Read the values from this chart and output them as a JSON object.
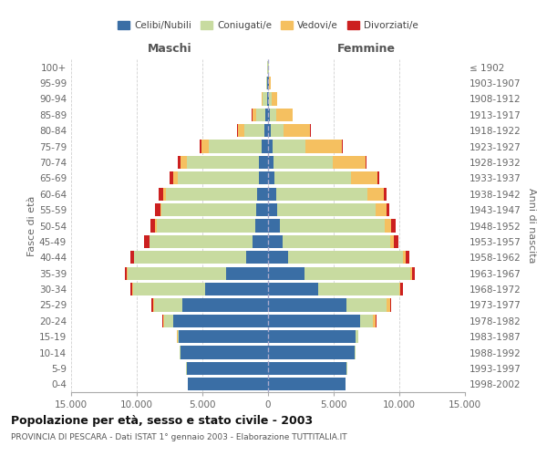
{
  "age_groups": [
    "0-4",
    "5-9",
    "10-14",
    "15-19",
    "20-24",
    "25-29",
    "30-34",
    "35-39",
    "40-44",
    "45-49",
    "50-54",
    "55-59",
    "60-64",
    "65-69",
    "70-74",
    "75-79",
    "80-84",
    "85-89",
    "90-94",
    "95-99",
    "100+"
  ],
  "birth_years": [
    "1998-2002",
    "1993-1997",
    "1988-1992",
    "1983-1987",
    "1978-1982",
    "1973-1977",
    "1968-1972",
    "1963-1967",
    "1958-1962",
    "1953-1957",
    "1948-1952",
    "1943-1947",
    "1938-1942",
    "1933-1937",
    "1928-1932",
    "1923-1927",
    "1918-1922",
    "1913-1917",
    "1908-1912",
    "1903-1907",
    "≤ 1902"
  ],
  "male": {
    "celibi": [
      6100,
      6200,
      6700,
      6800,
      7200,
      6500,
      4800,
      3200,
      1700,
      1200,
      1000,
      900,
      800,
      700,
      700,
      500,
      300,
      200,
      100,
      50,
      30
    ],
    "coniugati": [
      10,
      20,
      50,
      100,
      700,
      2200,
      5500,
      7500,
      8500,
      7800,
      7500,
      7200,
      7000,
      6200,
      5500,
      4000,
      1500,
      700,
      300,
      80,
      20
    ],
    "vedovi": [
      5,
      5,
      5,
      10,
      120,
      80,
      20,
      30,
      40,
      60,
      80,
      100,
      200,
      300,
      500,
      600,
      500,
      300,
      100,
      30,
      5
    ],
    "divorziati": [
      5,
      5,
      5,
      10,
      40,
      80,
      150,
      200,
      250,
      350,
      370,
      380,
      350,
      300,
      200,
      100,
      50,
      30,
      10,
      5,
      2
    ]
  },
  "female": {
    "nubili": [
      5900,
      6000,
      6600,
      6700,
      7000,
      6000,
      3800,
      2800,
      1500,
      1100,
      900,
      700,
      600,
      500,
      400,
      350,
      200,
      150,
      80,
      40,
      20
    ],
    "coniugate": [
      10,
      20,
      50,
      150,
      1000,
      3000,
      6200,
      8000,
      8800,
      8200,
      8000,
      7500,
      7000,
      5800,
      4500,
      2500,
      1000,
      500,
      200,
      60,
      15
    ],
    "vedove": [
      5,
      5,
      5,
      10,
      200,
      300,
      100,
      150,
      200,
      300,
      500,
      800,
      1200,
      2000,
      2500,
      2800,
      2000,
      1200,
      400,
      80,
      10
    ],
    "divorziate": [
      5,
      5,
      5,
      10,
      50,
      100,
      200,
      250,
      280,
      350,
      350,
      250,
      200,
      150,
      80,
      50,
      30,
      20,
      10,
      5,
      2
    ]
  },
  "colors": {
    "celibi": "#3a6ea5",
    "coniugati": "#c8dba0",
    "vedovi": "#f5c060",
    "divorziati": "#cc2020"
  },
  "title": "Popolazione per età, sesso e stato civile - 2003",
  "subtitle": "PROVINCIA DI PESCARA - Dati ISTAT 1° gennaio 2003 - Elaborazione TUTTITALIA.IT",
  "xlabel_left": "Maschi",
  "xlabel_right": "Femmine",
  "ylabel_left": "Fasce di età",
  "ylabel_right": "Anni di nascita",
  "xlim": 15000,
  "xtick_labels": [
    "15.000",
    "10.000",
    "5.000",
    "0",
    "5.000",
    "10.000",
    "15.000"
  ],
  "xtick_values": [
    -15000,
    -10000,
    -5000,
    0,
    5000,
    10000,
    15000
  ],
  "legend_labels": [
    "Celibi/Nubili",
    "Coniugati/e",
    "Vedovi/e",
    "Divorziati/e"
  ],
  "bg_color": "#ffffff",
  "grid_color": "#d0d0d0"
}
